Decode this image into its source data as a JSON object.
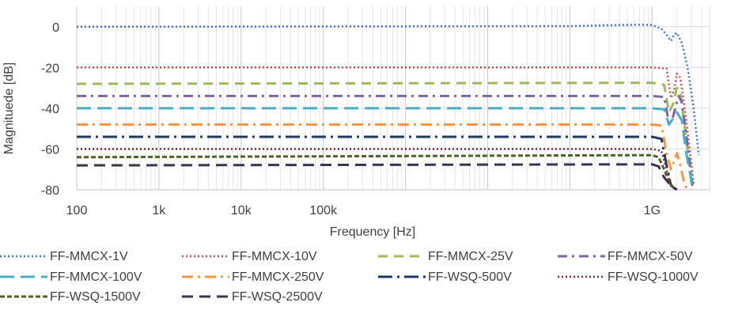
{
  "chart_data": {
    "type": "line",
    "xlabel": "Frequency [Hz]",
    "ylabel": "Magnituede [dB]",
    "x_scale": "log",
    "xlim": [
      100,
      5000000000
    ],
    "ylim": [
      -80,
      10
    ],
    "x_ticks": [
      {
        "value": 100,
        "label": "100"
      },
      {
        "value": 1000,
        "label": "1k"
      },
      {
        "value": 10000,
        "label": "10k"
      },
      {
        "value": 100000,
        "label": "100k"
      },
      {
        "value": 1000000000,
        "label": "1G"
      }
    ],
    "y_ticks": [
      0,
      -20,
      -40,
      -60,
      -80
    ],
    "grid": true,
    "legend_position": "bottom",
    "series": [
      {
        "name": "FF-MMCX-1V",
        "color": "#4472C4",
        "dash": "2,3",
        "width": 2.5,
        "points": [
          [
            100,
            0
          ],
          [
            1000,
            0
          ],
          [
            100000000,
            0.3
          ],
          [
            700000000,
            1
          ],
          [
            1000000000,
            0.8
          ],
          [
            1300000000,
            -1
          ],
          [
            1500000000,
            -4
          ],
          [
            1700000000,
            -7
          ],
          [
            1850000000,
            -4
          ],
          [
            2000000000,
            -3
          ],
          [
            2300000000,
            -8
          ],
          [
            2700000000,
            -20
          ],
          [
            3200000000,
            -40
          ],
          [
            3700000000,
            -63
          ]
        ]
      },
      {
        "name": "FF-MMCX-10V",
        "color": "#C0504D",
        "dash": "2,3",
        "width": 2.5,
        "points": [
          [
            100,
            -20
          ],
          [
            1000000000,
            -20
          ],
          [
            1500000000,
            -20.5
          ],
          [
            1700000000,
            -35
          ],
          [
            1850000000,
            -31
          ],
          [
            2000000000,
            -23
          ],
          [
            2200000000,
            -25
          ],
          [
            2500000000,
            -40
          ],
          [
            2900000000,
            -62
          ],
          [
            3200000000,
            -77
          ]
        ]
      },
      {
        "name": "FF-MMCX-25V",
        "color": "#9BBB59",
        "dash": "12,8",
        "width": 3,
        "points": [
          [
            100,
            -28
          ],
          [
            1000000000,
            -27.5
          ],
          [
            1400000000,
            -28.5
          ],
          [
            1600000000,
            -42
          ],
          [
            1800000000,
            -38
          ],
          [
            2000000000,
            -30
          ],
          [
            2200000000,
            -32
          ],
          [
            2600000000,
            -55
          ],
          [
            3000000000,
            -75
          ]
        ]
      },
      {
        "name": "FF-MMCX-50V",
        "color": "#8064A2",
        "dash": "12,6,3,6",
        "width": 3,
        "points": [
          [
            100,
            -34
          ],
          [
            1000000000,
            -34
          ],
          [
            1400000000,
            -34.5
          ],
          [
            1600000000,
            -47
          ],
          [
            1800000000,
            -44
          ],
          [
            2100000000,
            -34
          ],
          [
            2300000000,
            -37
          ],
          [
            2700000000,
            -58
          ],
          [
            3100000000,
            -78
          ]
        ]
      },
      {
        "name": "FF-MMCX-100V",
        "color": "#4BACC6",
        "dash": "18,8",
        "width": 3,
        "points": [
          [
            100,
            -40
          ],
          [
            1000000000,
            -40
          ],
          [
            1400000000,
            -40.5
          ],
          [
            1600000000,
            -48
          ],
          [
            1800000000,
            -45
          ],
          [
            2000000000,
            -42
          ],
          [
            2300000000,
            -46
          ],
          [
            2600000000,
            -62
          ],
          [
            2900000000,
            -72
          ],
          [
            3100000000,
            -80
          ]
        ]
      },
      {
        "name": "FF-MMCX-250V",
        "color": "#F79646",
        "dash": "14,6,3,6",
        "width": 3,
        "points": [
          [
            100,
            -48
          ],
          [
            1000000000,
            -48
          ],
          [
            1300000000,
            -48.5
          ],
          [
            1500000000,
            -62
          ],
          [
            1700000000,
            -70
          ],
          [
            2000000000,
            -62
          ],
          [
            2200000000,
            -68
          ],
          [
            2500000000,
            -78
          ],
          [
            2800000000,
            -80
          ]
        ]
      },
      {
        "name": "FF-WSQ-500V",
        "color": "#1F3864",
        "dash": "18,6,3,6",
        "width": 3,
        "points": [
          [
            100,
            -54
          ],
          [
            1000000000,
            -54
          ],
          [
            1300000000,
            -55
          ],
          [
            1500000000,
            -68
          ],
          [
            1700000000,
            -78
          ],
          [
            2000000000,
            -80
          ]
        ]
      },
      {
        "name": "FF-WSQ-1000V",
        "color": "#7B2C2C",
        "dash": "2,3",
        "width": 2.5,
        "points": [
          [
            100,
            -60
          ],
          [
            1000000000,
            -60
          ],
          [
            1300000000,
            -61
          ],
          [
            1500000000,
            -70
          ],
          [
            1700000000,
            -78
          ],
          [
            2000000000,
            -80
          ]
        ]
      },
      {
        "name": "FF-WSQ-1500V",
        "color": "#4F6228",
        "dash": "6,3",
        "width": 3,
        "points": [
          [
            100,
            -64
          ],
          [
            1000000000,
            -63
          ],
          [
            1200000000,
            -64
          ],
          [
            1400000000,
            -70
          ],
          [
            1600000000,
            -76
          ],
          [
            1900000000,
            -80
          ]
        ]
      },
      {
        "name": "FF-WSQ-2500V",
        "color": "#3F3151",
        "dash": "14,8",
        "width": 3,
        "points": [
          [
            100,
            -68
          ],
          [
            1000000000,
            -67.5
          ],
          [
            1200000000,
            -68.5
          ],
          [
            1400000000,
            -74
          ],
          [
            1700000000,
            -78
          ],
          [
            2000000000,
            -80
          ]
        ]
      }
    ]
  }
}
